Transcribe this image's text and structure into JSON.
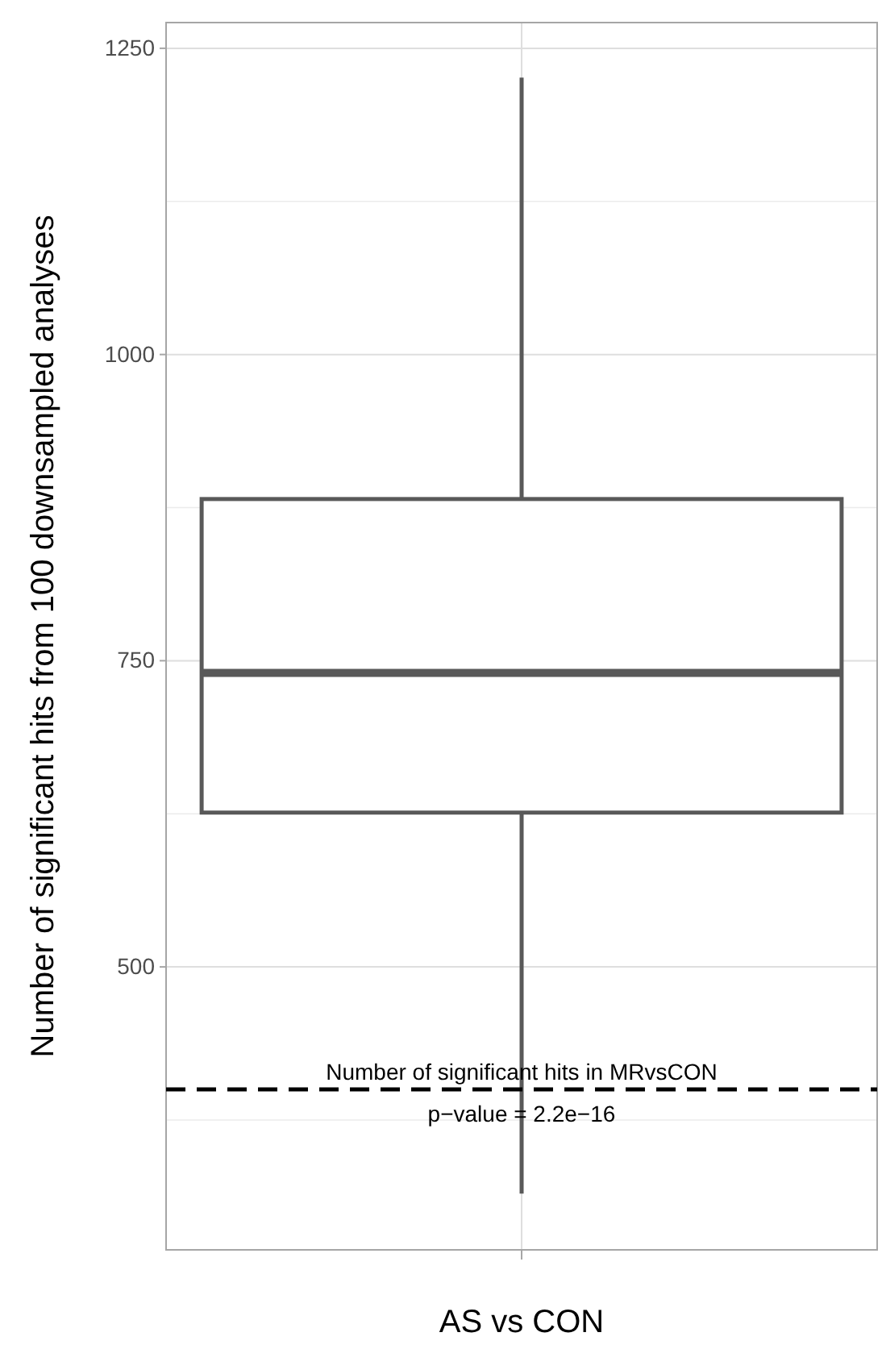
{
  "chart_data": {
    "type": "box",
    "categories": [
      null
    ],
    "xlabel": "AS vs CON",
    "ylabel": "Number of significant hits from 100 downsampled analyses",
    "boxes": [
      {
        "low": 315,
        "q1": 626,
        "median": 740,
        "q3": 882,
        "high": 1226
      }
    ],
    "color": "#595959",
    "ylim": [
      269,
      1271
    ],
    "yticks": [
      500,
      750,
      1000,
      1250
    ],
    "grid": true,
    "ref_lines": [
      {
        "axis": "y",
        "value": 400,
        "label": "Number of significant hits in MRvsCON",
        "color": "#000000",
        "line_style": "dashed"
      }
    ],
    "annotations": [
      {
        "text": "p−value = 2.2e−16",
        "y": 400
      }
    ]
  }
}
